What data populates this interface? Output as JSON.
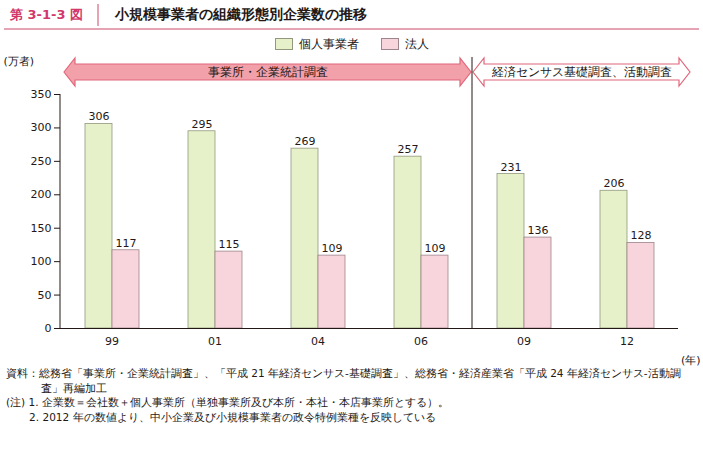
{
  "chart_data": {
    "type": "bar",
    "figure_number": "第 3-1-3 図",
    "title": "小規模事業者の組織形態別企業数の推移",
    "y_label": "(万者)",
    "x_label": "(年)",
    "categories": [
      "99",
      "01",
      "04",
      "06",
      "09",
      "12"
    ],
    "series": [
      {
        "name": "個人事業者",
        "color": "#e7f1c9",
        "values": [
          306,
          295,
          269,
          257,
          231,
          206
        ]
      },
      {
        "name": "法人",
        "color": "#f8d5dd",
        "values": [
          117,
          115,
          109,
          109,
          136,
          128
        ]
      }
    ],
    "ylim": [
      0,
      350
    ],
    "yticks": [
      0,
      50,
      100,
      150,
      200,
      250,
      300,
      350
    ],
    "grid": false,
    "legend": "top",
    "data_labels": true,
    "annotations": [
      {
        "text": "事業所・企業統計調査",
        "from": "99",
        "to": "06"
      },
      {
        "text": "経済センサス基礎調査、活動調査",
        "from": "09",
        "to": "12"
      }
    ],
    "source": "資料：総務省「事業所・企業統計調査」、「平成 21 年経済センサス‐基礎調査」、総務省・経済産業省「平成 24 年経済センサス‐活動調査」再編加工",
    "notes_label": "(注)",
    "notes": [
      "1. 企業数＝会社数＋個人事業所（単独事業所及び本所・本社・本店事業所とする）。",
      "2. 2012 年の数値より、中小企業及び小規模事業者の政令特例業種を反映している"
    ]
  }
}
